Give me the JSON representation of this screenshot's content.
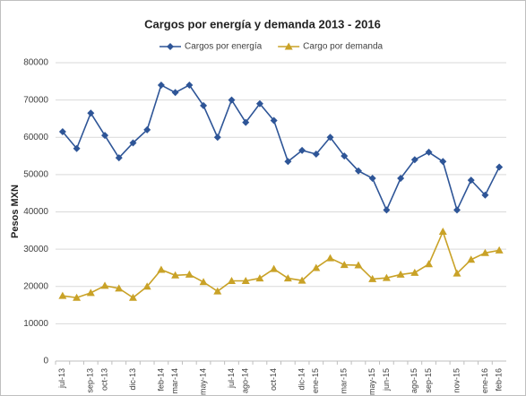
{
  "chart_data": {
    "type": "line",
    "title": "Cargos por energía y demanda 2013 - 2016",
    "y_label": "Pesos MXN",
    "categories": [
      "jul-13",
      null,
      "sep-13",
      "oct-13",
      null,
      "dic-13",
      null,
      "feb-14",
      "mar-14",
      null,
      "may-14",
      null,
      "jul-14",
      "ago-14",
      null,
      "oct-14",
      null,
      "dic-14",
      "ene-15",
      null,
      "mar-15",
      null,
      "may-15",
      "jun-15",
      null,
      "ago-15",
      "sep-15",
      null,
      "nov-15",
      null,
      "ene-16",
      "feb-16"
    ],
    "series": [
      {
        "name": "Cargos por energía",
        "color": "#2e5597",
        "marker": "diamond",
        "values": [
          61500,
          57000,
          66500,
          60500,
          54500,
          58500,
          62000,
          74000,
          72000,
          74000,
          68500,
          60000,
          70000,
          64000,
          69000,
          64500,
          53500,
          56500,
          55500,
          60000,
          55000,
          51000,
          49000,
          40500,
          49000,
          54000,
          56000,
          53500,
          40500,
          48500,
          44500,
          52000
        ]
      },
      {
        "name": "Cargo por demanda",
        "color": "#c9a227",
        "marker": "triangle",
        "values": [
          17500,
          17000,
          18300,
          20200,
          19500,
          17000,
          20000,
          24500,
          23000,
          23200,
          21200,
          18700,
          21500,
          21500,
          22200,
          24700,
          22200,
          21600,
          25000,
          27600,
          25800,
          25700,
          22000,
          22300,
          23200,
          23700,
          26000,
          34700,
          23500,
          27200,
          29000,
          29700
        ]
      }
    ],
    "ylim": [
      0,
      80000
    ],
    "yticks": [
      0,
      10000,
      20000,
      30000,
      40000,
      50000,
      60000,
      70000,
      80000
    ],
    "grid": true,
    "legend": "top"
  }
}
